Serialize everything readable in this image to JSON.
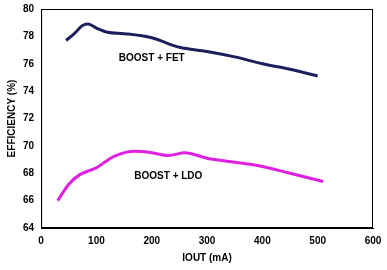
{
  "chart_data": {
    "type": "line",
    "x_label": "IOUT (mA)",
    "y_label": "EFFICIENCY (%)",
    "xlim": [
      0,
      600
    ],
    "xticks": [
      0,
      100,
      200,
      300,
      400,
      500,
      600
    ],
    "ylim": [
      64,
      80
    ],
    "yticks": [
      64,
      66,
      68,
      70,
      72,
      74,
      76,
      78,
      80
    ],
    "grid": false,
    "series": [
      {
        "name": "BOOST + FET",
        "color": "#1c1f5c",
        "x": [
          45,
          60,
          75,
          85,
          100,
          120,
          150,
          200,
          250,
          300,
          350,
          400,
          450,
          500
        ],
        "values": [
          77.7,
          78.2,
          78.8,
          78.9,
          78.6,
          78.3,
          78.2,
          77.9,
          77.2,
          76.9,
          76.5,
          76.0,
          75.6,
          75.1
        ]
      },
      {
        "name": "BOOST + LDO",
        "color": "#e020e0",
        "x": [
          30,
          50,
          70,
          100,
          130,
          170,
          200,
          230,
          260,
          300,
          350,
          400,
          450,
          510
        ],
        "values": [
          66.0,
          67.2,
          67.9,
          68.4,
          69.2,
          69.6,
          69.5,
          69.3,
          69.5,
          69.1,
          68.8,
          68.5,
          68.0,
          67.4
        ]
      }
    ]
  }
}
